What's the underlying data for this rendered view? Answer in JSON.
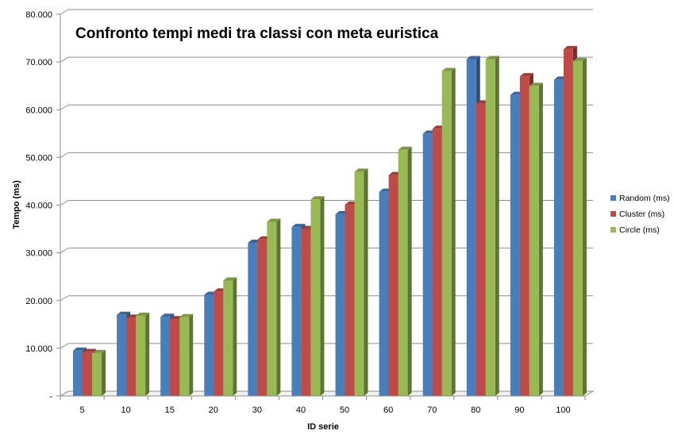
{
  "chart_data": {
    "type": "bar",
    "title": "Confronto tempi medi tra classi con meta euristica",
    "xlabel": "ID serie",
    "ylabel": "Tempo (ms)",
    "ylim": [
      0,
      80000
    ],
    "yticks": [
      0,
      10000,
      20000,
      30000,
      40000,
      50000,
      60000,
      70000,
      80000
    ],
    "ytick_labels": [
      "-",
      "10.000",
      "20.000",
      "30.000",
      "40.000",
      "50.000",
      "60.000",
      "70.000",
      "80.000"
    ],
    "categories": [
      "5",
      "10",
      "15",
      "20",
      "30",
      "40",
      "50",
      "60",
      "70",
      "80",
      "90",
      "100"
    ],
    "grid": true,
    "legend_position": "right",
    "series": [
      {
        "name": "Random (ms)",
        "color": "#4A7EBB",
        "values": [
          9500,
          17000,
          16600,
          21200,
          32100,
          35400,
          38100,
          42800,
          55000,
          70600,
          63100,
          66300
        ]
      },
      {
        "name": "Cluster (ms)",
        "color": "#BE4B48",
        "values": [
          9200,
          16400,
          16100,
          21900,
          32800,
          35000,
          40100,
          46300,
          56000,
          61300,
          67000,
          72700
        ]
      },
      {
        "name": "Circle (ms)",
        "color": "#98B954",
        "values": [
          9000,
          16800,
          16500,
          24200,
          36500,
          41200,
          47000,
          51600,
          68100,
          70600,
          65000,
          70200
        ]
      }
    ]
  }
}
